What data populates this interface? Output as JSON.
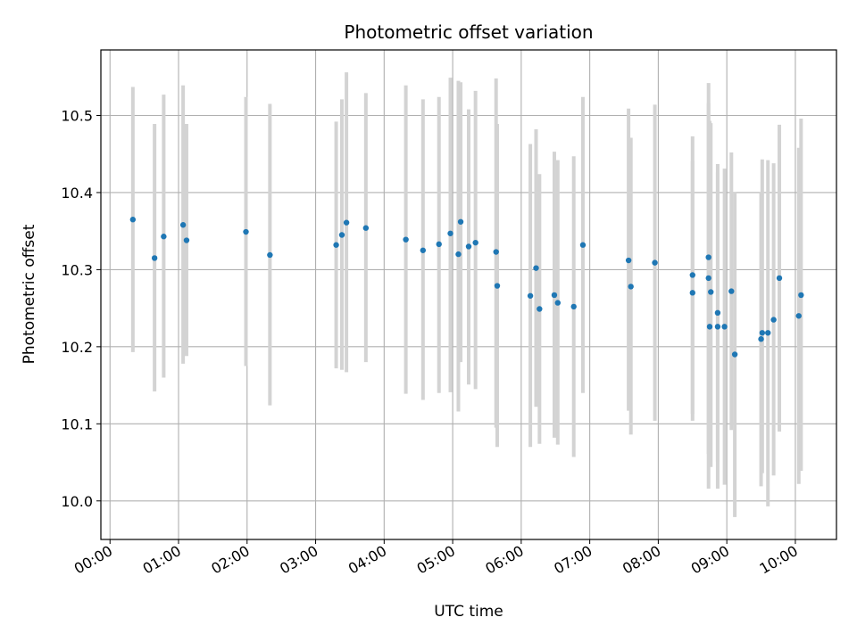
{
  "chart_data": {
    "type": "scatter",
    "title": "Photometric offset variation",
    "xlabel": "UTC time",
    "ylabel": "Photometric offset",
    "xlim": [
      "23:52",
      "10:36"
    ],
    "ylim": [
      9.95,
      10.585
    ],
    "x_ticks": [
      "00:00",
      "01:00",
      "02:00",
      "03:00",
      "04:00",
      "05:00",
      "06:00",
      "07:00",
      "08:00",
      "09:00",
      "10:00"
    ],
    "y_ticks": [
      10.0,
      10.1,
      10.2,
      10.3,
      10.4,
      10.5
    ],
    "grid": true,
    "colors": {
      "point": "#1f77b4",
      "errorbar": "#d3d3d3",
      "grid": "#b0b0b0"
    },
    "series": [
      {
        "x": [
          "00:20",
          "00:39",
          "00:47",
          "01:04",
          "01:07",
          "01:59",
          "02:20",
          "03:18",
          "03:23",
          "03:27",
          "03:44",
          "04:19",
          "04:34",
          "04:48",
          "04:58",
          "05:05",
          "05:07",
          "05:14",
          "05:20",
          "05:38",
          "05:39",
          "06:08",
          "06:13",
          "06:16",
          "06:29",
          "06:32",
          "06:46",
          "06:54",
          "07:34",
          "07:36",
          "07:57",
          "08:30",
          "08:30",
          "08:44",
          "08:44",
          "08:45",
          "08:46",
          "08:52",
          "08:52",
          "08:58",
          "09:04",
          "09:07",
          "09:30",
          "09:31",
          "09:36",
          "09:41",
          "09:46",
          "10:03",
          "10:05"
        ],
        "y": [
          10.365,
          10.315,
          10.343,
          10.358,
          10.338,
          10.349,
          10.319,
          10.332,
          10.345,
          10.361,
          10.354,
          10.339,
          10.325,
          10.333,
          10.347,
          10.32,
          10.362,
          10.33,
          10.335,
          10.323,
          10.279,
          10.266,
          10.302,
          10.249,
          10.267,
          10.257,
          10.252,
          10.332,
          10.312,
          10.278,
          10.309,
          10.293,
          10.27,
          10.316,
          10.289,
          10.226,
          10.271,
          10.226,
          10.244,
          10.226,
          10.272,
          10.19,
          10.21,
          10.218,
          10.218,
          10.235,
          10.289,
          10.24,
          10.267
        ],
        "yerr_low": [
          10.193,
          10.142,
          10.16,
          10.178,
          10.188,
          10.175,
          10.124,
          10.172,
          10.17,
          10.167,
          10.18,
          10.139,
          10.131,
          10.14,
          10.141,
          10.116,
          10.18,
          10.151,
          10.145,
          10.095,
          10.07,
          10.07,
          10.122,
          10.074,
          10.082,
          10.073,
          10.057,
          10.14,
          10.117,
          10.086,
          10.104,
          10.104,
          10.113,
          10.061,
          10.016,
          10.052,
          10.044,
          10.016,
          10.051,
          10.021,
          10.092,
          9.979,
          10.019,
          10.036,
          9.993,
          10.033,
          10.09,
          10.022,
          10.039
        ],
        "yerr_high": [
          10.537,
          10.489,
          10.527,
          10.539,
          10.489,
          10.524,
          10.515,
          10.492,
          10.521,
          10.556,
          10.529,
          10.539,
          10.521,
          10.524,
          10.549,
          10.545,
          10.543,
          10.508,
          10.532,
          10.548,
          10.489,
          10.463,
          10.482,
          10.424,
          10.453,
          10.442,
          10.447,
          10.524,
          10.509,
          10.471,
          10.514,
          10.473,
          10.441,
          10.542,
          10.516,
          10.493,
          10.49,
          10.437,
          10.426,
          10.431,
          10.452,
          10.401,
          10.401,
          10.443,
          10.442,
          10.438,
          10.488,
          10.458,
          10.496
        ]
      }
    ]
  }
}
